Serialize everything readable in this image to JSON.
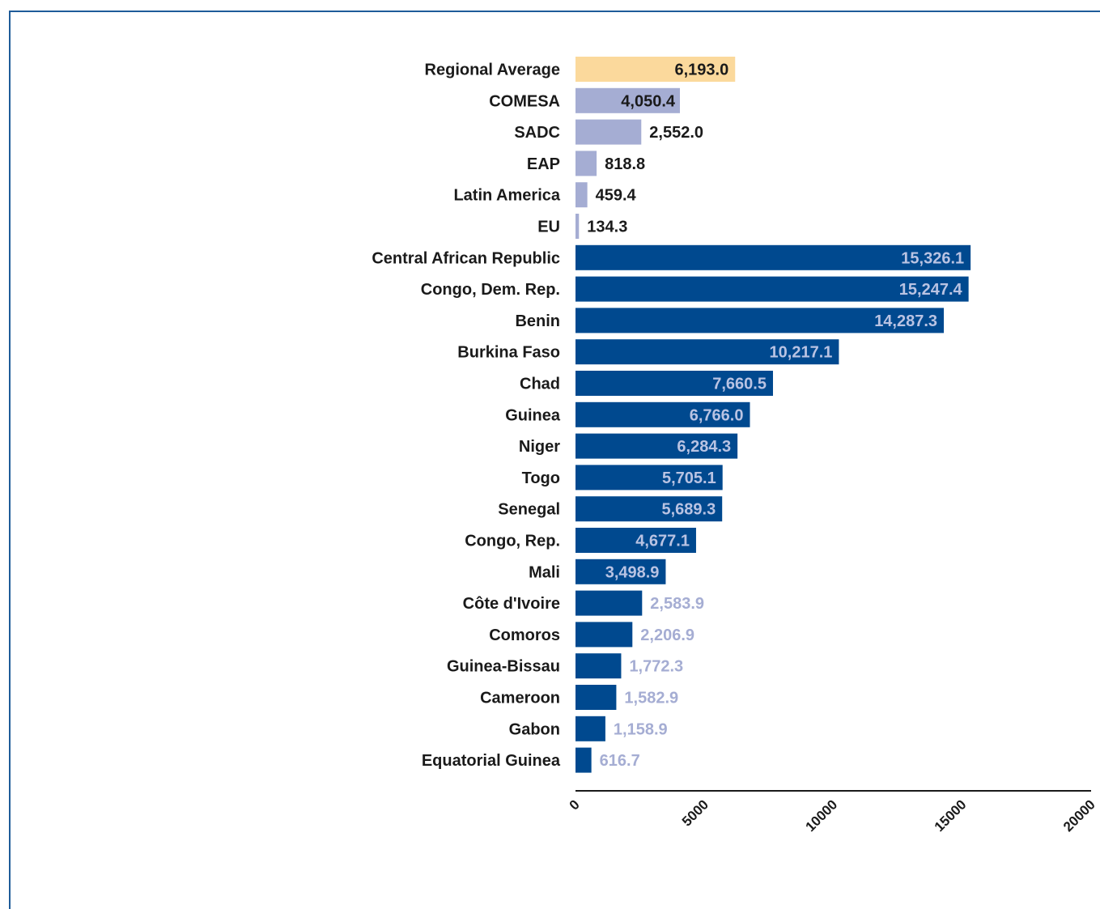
{
  "chart_data": {
    "type": "bar",
    "orientation": "horizontal",
    "title": "",
    "xlabel": "",
    "ylabel": "",
    "xlim": [
      0,
      20000
    ],
    "xticks": [
      0,
      5000,
      10000,
      15000,
      20000
    ],
    "xtick_labels": [
      "0",
      "5000",
      "10000",
      "15000",
      "20000"
    ],
    "grid": false,
    "legend": "none",
    "categories": [
      "Regional Average",
      "COMESA",
      "SADC",
      "EAP",
      "Latin America",
      "EU",
      "Central African Republic",
      "Congo, Dem. Rep.",
      "Benin",
      "Burkina Faso",
      "Chad",
      "Guinea",
      "Niger",
      "Togo",
      "Senegal",
      "Congo, Rep.",
      "Mali",
      "Côte d'Ivoire",
      "Comoros",
      "Guinea-Bissau",
      "Cameroon",
      "Gabon",
      "Equatorial Guinea"
    ],
    "values": [
      6193.0,
      4050.4,
      2552.0,
      818.8,
      459.4,
      134.3,
      15326.1,
      15247.4,
      14287.3,
      10217.1,
      7660.5,
      6766.0,
      6284.3,
      5705.1,
      5689.3,
      4677.1,
      3498.9,
      2583.9,
      2206.9,
      1772.3,
      1582.9,
      1158.9,
      616.7
    ],
    "value_labels": [
      "6,193.0",
      "4,050.4",
      "2,552.0",
      "818.8",
      "459.4",
      "134.3",
      "15,326.1",
      "15,247.4",
      "14,287.3",
      "10,217.1",
      "7,660.5",
      "6,766.0",
      "6,284.3",
      "5,705.1",
      "5,689.3",
      "4,677.1",
      "3,498.9",
      "2,583.9",
      "2,206.9",
      "1,772.3",
      "1,582.9",
      "1,158.9",
      "616.7"
    ],
    "groups": [
      "average",
      "comparator",
      "comparator",
      "comparator",
      "comparator",
      "comparator",
      "country",
      "country",
      "country",
      "country",
      "country",
      "country",
      "country",
      "country",
      "country",
      "country",
      "country",
      "country",
      "country",
      "country",
      "country",
      "country",
      "country"
    ],
    "colors": {
      "average": "#fbd99c",
      "comparator": "#a5add3",
      "country": "#00498f",
      "label_dark": "#1a1a1a",
      "label_inside_country": "#b9c3e3",
      "label_outside_country": "#a5add3",
      "axis": "#1a1a1a"
    }
  }
}
